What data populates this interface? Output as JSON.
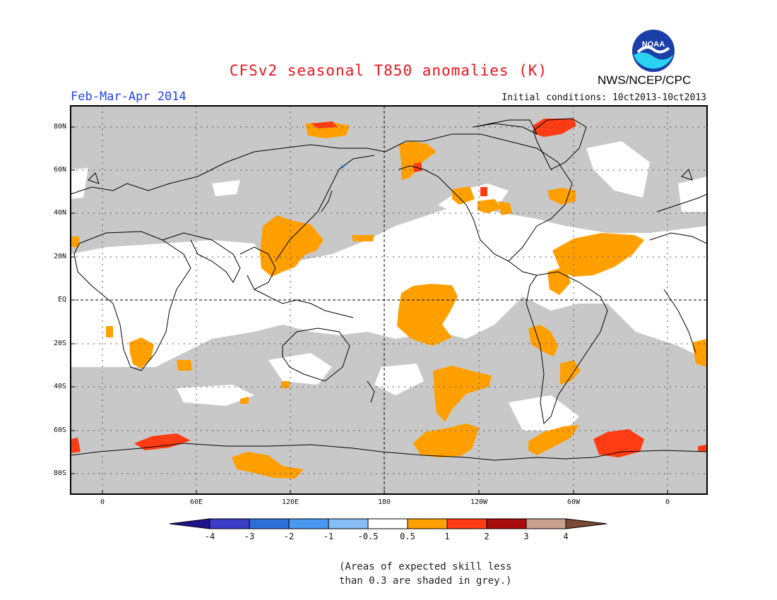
{
  "map": {
    "title": "CFSv2 seasonal T850 anomalies (K)",
    "season": "Feb-Mar-Apr 2014",
    "initial_conditions": "Initial conditions: 10ct2013-10ct2013",
    "organization": "NWS/NCEP/CPC",
    "logo_text": "NOAA",
    "lat_labels": [
      "80N",
      "60N",
      "40N",
      "20N",
      "EQ",
      "20S",
      "40S",
      "60S",
      "80S"
    ],
    "lon_labels": [
      "0",
      "60E",
      "120E",
      "180",
      "120W",
      "60W",
      "0"
    ],
    "colors": {
      "grey_skill": "#c8c8c8",
      "cat_0.5_1": "#ff9f00",
      "cat_1_2": "#ff3c14",
      "title": "#e8141c",
      "season": "#2244ee"
    }
  },
  "colorbar": {
    "labels": [
      "-4",
      "-3",
      "-2",
      "-1",
      "-0.5",
      "0.5",
      "1",
      "2",
      "3",
      "4"
    ],
    "colors": [
      "#20128c",
      "#3d3ec8",
      "#2d6fd8",
      "#4a98ef",
      "#86bdf5",
      "#ffffff",
      "#ff9f00",
      "#ff3c14",
      "#a80c0c",
      "#c8a090",
      "#7a4a36"
    ]
  },
  "note": {
    "line1": "(Areas of expected skill less",
    "line2": "than 0.3 are shaded in grey.)"
  }
}
